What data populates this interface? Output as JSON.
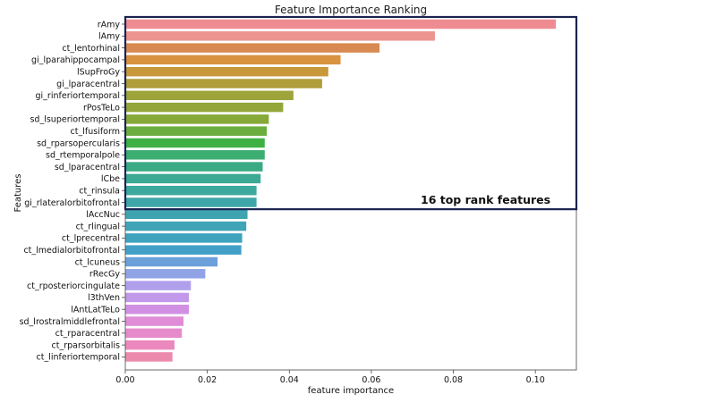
{
  "chart_data": {
    "type": "bar",
    "orientation": "horizontal",
    "title": "Feature Importance Ranking",
    "xlabel": "feature importance",
    "ylabel": "Features",
    "xlim": [
      0,
      0.11
    ],
    "xticks": [
      "0.00",
      "0.02",
      "0.04",
      "0.06",
      "0.08",
      "0.10"
    ],
    "xtick_values": [
      0,
      0.02,
      0.04,
      0.06,
      0.08,
      0.1
    ],
    "grid": false,
    "categories": [
      "rAmy",
      "lAmy",
      "ct_lentorhinal",
      "gi_lparahippocampal",
      "lSupFroGy",
      "gi_lparacentral",
      "gi_rinferiortemporal",
      "rPosTeLo",
      "sd_lsuperiortemporal",
      "ct_lfusiform",
      "sd_rparsopercularis",
      "sd_rtemporalpole",
      "sd_lparacentral",
      "lCbe",
      "ct_rinsula",
      "gi_rlateralorbitofrontal",
      "lAccNuc",
      "ct_rlingual",
      "ct_lprecentral",
      "ct_lmedialorbitofrontal",
      "ct_lcuneus",
      "rRecGy",
      "ct_rposteriorcingulate",
      "l3thVen",
      "lAntLatTeLo",
      "sd_lrostralmiddlefrontal",
      "ct_rparacentral",
      "ct_rparsorbitalis",
      "ct_linferiortemporal"
    ],
    "values": [
      0.105,
      0.0755,
      0.062,
      0.0525,
      0.0495,
      0.048,
      0.041,
      0.0385,
      0.035,
      0.0345,
      0.034,
      0.034,
      0.0335,
      0.033,
      0.032,
      0.032,
      0.0298,
      0.0295,
      0.0285,
      0.0283,
      0.0225,
      0.0195,
      0.016,
      0.0155,
      0.0155,
      0.0142,
      0.0138,
      0.012,
      0.0115
    ],
    "colors": [
      "#EE8C92",
      "#EC9490",
      "#D88A52",
      "#D89240",
      "#C8983A",
      "#B09E3A",
      "#9EA33A",
      "#93A63A",
      "#86A93A",
      "#6BAD3E",
      "#3FB144",
      "#3CAE72",
      "#3AAA85",
      "#3BA993",
      "#3DA89E",
      "#3EA6A8",
      "#3EA4B0",
      "#3EA4B6",
      "#3FA3BE",
      "#42A0C8",
      "#6BA0DA",
      "#8FA3E6",
      "#B0A0EC",
      "#C298EA",
      "#D290E4",
      "#E08CD6",
      "#E78ACC",
      "#EB89BE",
      "#EC8AAE"
    ],
    "annotation": {
      "text": "16 top rank features",
      "highlight_count": 16
    }
  }
}
